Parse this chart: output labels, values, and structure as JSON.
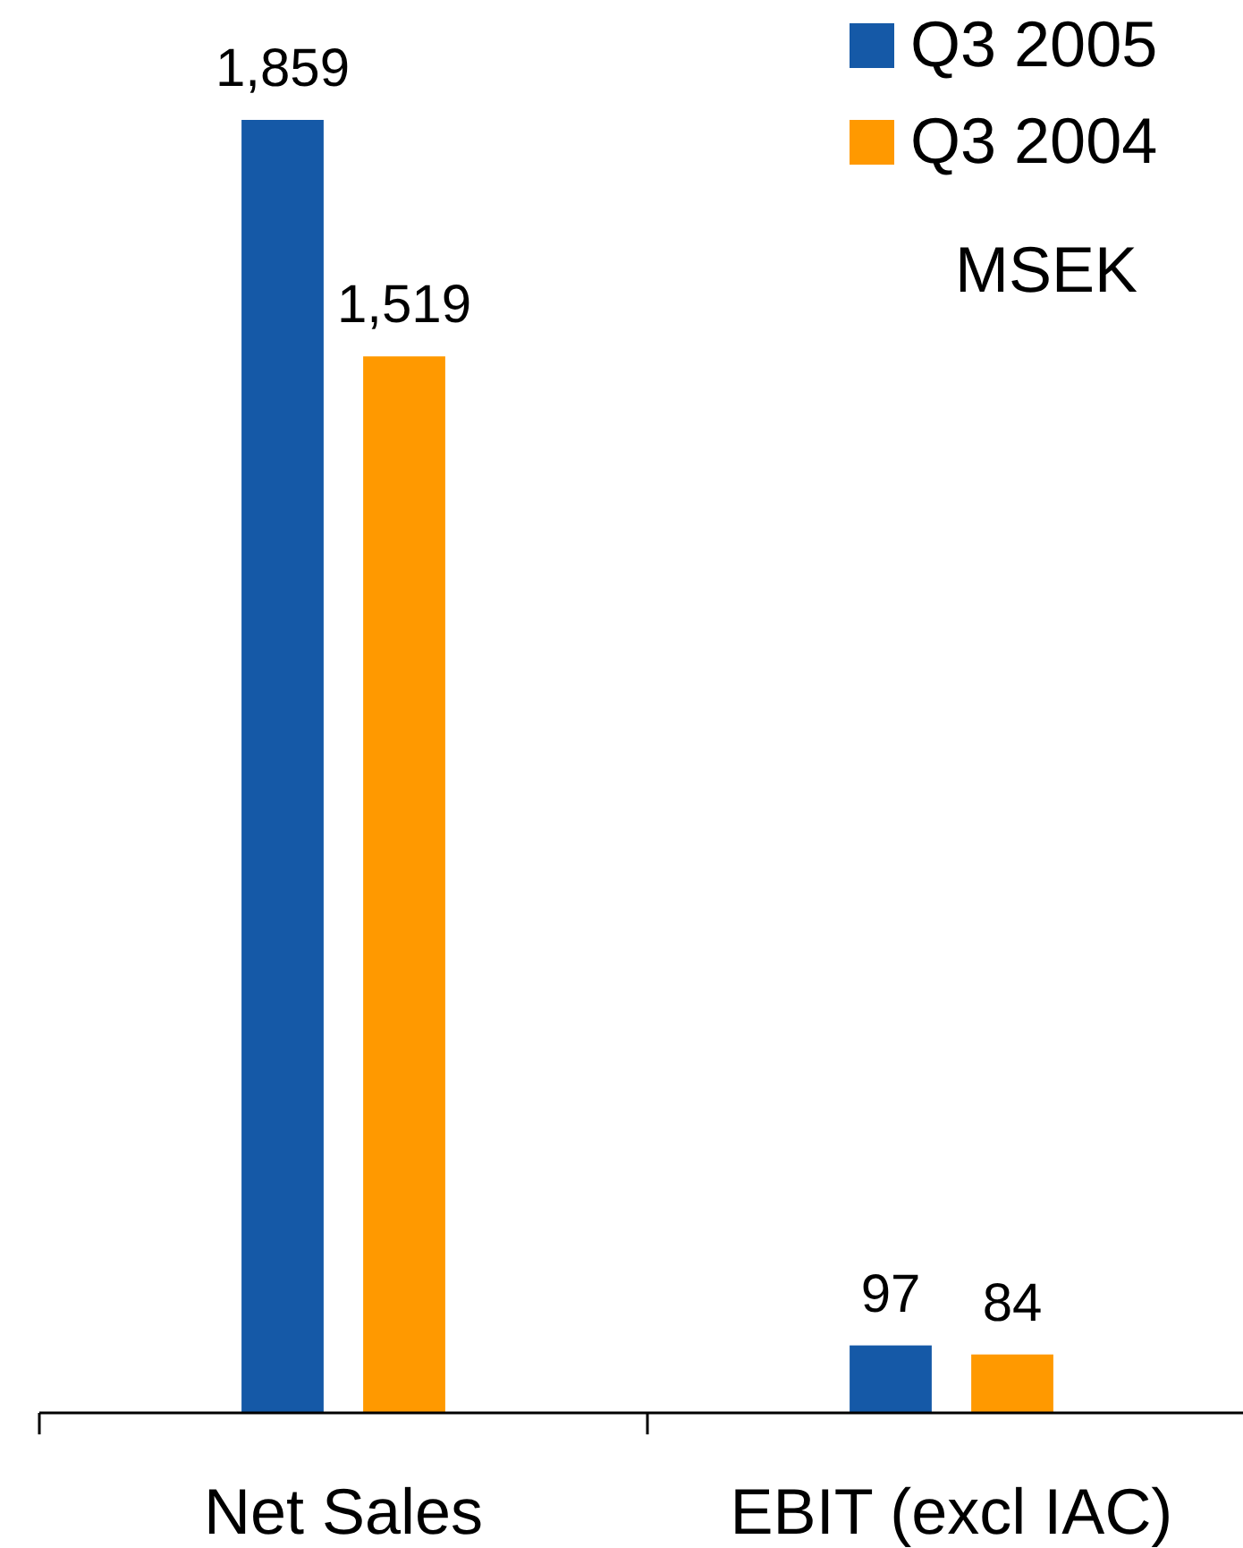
{
  "chart_data": {
    "type": "bar",
    "categories": [
      "Net Sales",
      "EBIT (excl IAC)"
    ],
    "series": [
      {
        "name": "Q3 2005",
        "color": "#1559a7",
        "values": [
          1859,
          97
        ],
        "value_labels": [
          "1,859",
          "97"
        ]
      },
      {
        "name": "Q3 2004",
        "color": "#ff9900",
        "values": [
          1519,
          84
        ],
        "value_labels": [
          "1,519",
          "84"
        ]
      }
    ],
    "legend": "top right",
    "annotations": [
      "MSEK"
    ]
  }
}
